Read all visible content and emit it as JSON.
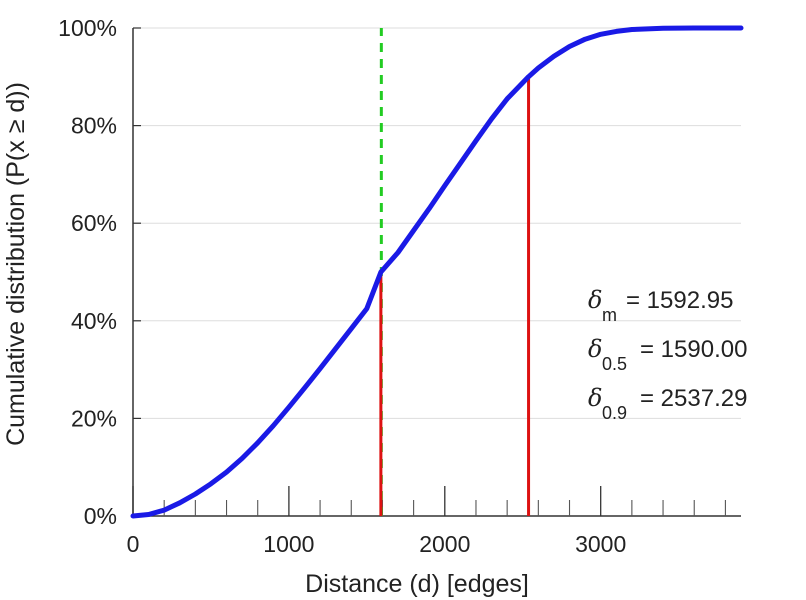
{
  "chart_data": {
    "type": "line",
    "xlabel": "Distance (d) [edges]",
    "ylabel": "Cumulative distribution (P(x ≥ d))",
    "xlim": [
      0,
      3900
    ],
    "ylim": [
      0,
      100
    ],
    "x_ticks": [
      0,
      1000,
      2000,
      3000
    ],
    "x_tick_labels": [
      "0",
      "1000",
      "2000",
      "3000"
    ],
    "y_ticks": [
      0,
      20,
      40,
      60,
      80,
      100
    ],
    "y_tick_labels": [
      "0%",
      "20%",
      "40%",
      "60%",
      "80%",
      "100%"
    ],
    "x_minor_step": 200,
    "grid": "horizontal",
    "series": [
      {
        "color": "#1a1ae6",
        "x": [
          0,
          100,
          200,
          300,
          400,
          500,
          600,
          700,
          800,
          900,
          1000,
          1100,
          1200,
          1300,
          1400,
          1500,
          1590,
          1700,
          1800,
          1900,
          2000,
          2100,
          2200,
          2300,
          2400,
          2537,
          2600,
          2700,
          2800,
          2900,
          3000,
          3100,
          3200,
          3400,
          3600,
          3900
        ],
        "y": [
          0,
          0.3,
          1.2,
          2.7,
          4.5,
          6.6,
          9,
          11.8,
          15,
          18.5,
          22.3,
          26.2,
          30.2,
          34.3,
          38.4,
          42.5,
          50,
          54,
          58.5,
          63,
          67.7,
          72.3,
          76.9,
          81.4,
          85.5,
          90,
          91.8,
          94.2,
          96.2,
          97.7,
          98.7,
          99.3,
          99.7,
          99.95,
          100,
          100
        ]
      }
    ],
    "vertical_lines": [
      {
        "x": 1592.95,
        "y_top": 100,
        "color": "#22cc22",
        "style": "dashed"
      },
      {
        "x": 1590.0,
        "y_top": 50,
        "color": "#dd1111",
        "style": "solid"
      },
      {
        "x": 2537.29,
        "y_top": 90,
        "color": "#dd1111",
        "style": "solid"
      }
    ],
    "annotations": [
      {
        "symbol": "δ",
        "subscript": "m",
        "text": "= 1592.95"
      },
      {
        "symbol": "δ",
        "subscript": "0.5",
        "text": "= 1590.00"
      },
      {
        "symbol": "δ",
        "subscript": "0.9",
        "text": "= 2537.29"
      }
    ]
  }
}
